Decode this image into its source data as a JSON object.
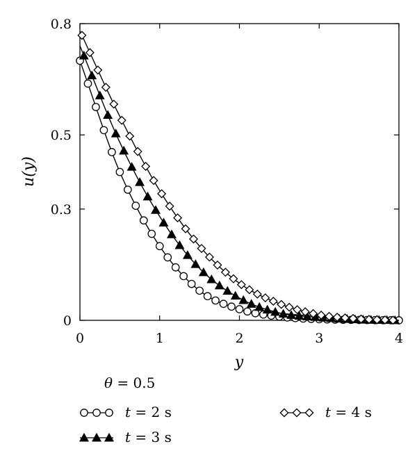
{
  "chart_data": {
    "type": "line",
    "xlabel": "y",
    "ylabel": "u(y)",
    "xlim": [
      0,
      4
    ],
    "ylim": [
      0,
      0.8
    ],
    "x_ticks": [
      "0",
      "1",
      "2",
      "3",
      "4"
    ],
    "y_ticks": [
      "0",
      "0.3",
      "0.5",
      "0.8"
    ],
    "y_tick_values": [
      0,
      0.3,
      0.5,
      0.8
    ],
    "grid": false,
    "legend_title": "θ = 0.5",
    "legend_position": "bottom-left",
    "series": [
      {
        "name": "t = 2 s",
        "marker": "circle-open",
        "x": [
          0,
          0.5,
          1,
          1.5,
          2,
          2.5,
          3,
          3.5,
          4
        ],
        "y": [
          0.7,
          0.4,
          0.2,
          0.08,
          0.03,
          0.01,
          0.003,
          0.001,
          0.0
        ]
      },
      {
        "name": "t = 3 s",
        "marker": "triangle-filled",
        "x": [
          0,
          0.5,
          1,
          1.5,
          2,
          2.5,
          3,
          3.5,
          4
        ],
        "y": [
          0.74,
          0.48,
          0.28,
          0.14,
          0.06,
          0.02,
          0.008,
          0.002,
          0.0
        ]
      },
      {
        "name": "t = 4 s",
        "marker": "diamond-open",
        "x": [
          0,
          0.5,
          1,
          1.5,
          2,
          2.5,
          3,
          3.5,
          4
        ],
        "y": [
          0.78,
          0.55,
          0.35,
          0.2,
          0.1,
          0.045,
          0.015,
          0.004,
          0.0
        ]
      }
    ],
    "legend_parts": {
      "theta_var": "θ",
      "theta_rest": " = 0.5",
      "t_var": "t",
      "t2_rest": " = 2 s",
      "t3_rest": " = 3 s",
      "t4_rest": " = 4 s"
    },
    "colors": {
      "line": "#000000",
      "background": "#ffffff"
    }
  }
}
